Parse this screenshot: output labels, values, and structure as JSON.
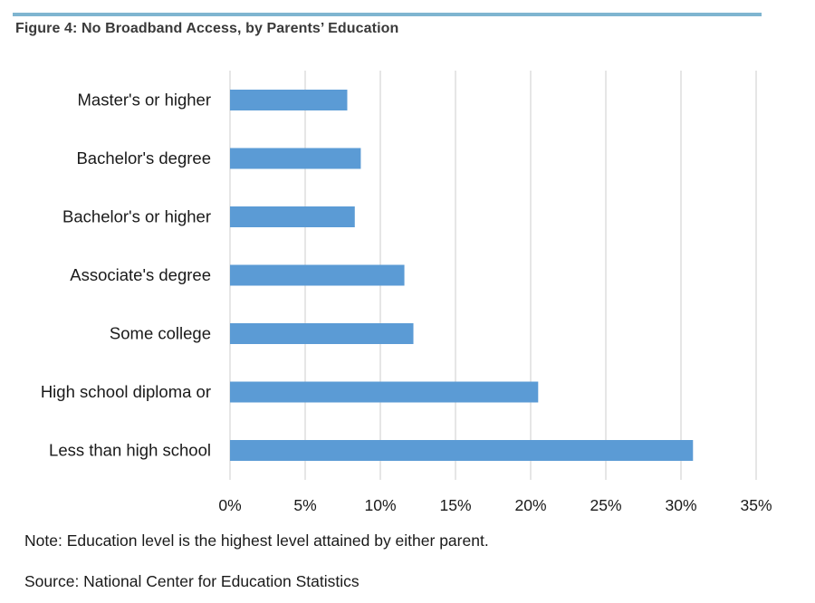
{
  "figure": {
    "title": "Figure 4: No Broadband Access, by Parents’ Education",
    "note": "Note: Education level is the highest level attained by either parent.",
    "source": "Source: National Center for Education Statistics"
  },
  "colors": {
    "bar": "#5b9bd5",
    "gridline": "#d9d9d9",
    "rule": "#7fb5d0"
  },
  "chart_data": {
    "type": "bar",
    "orientation": "horizontal",
    "categories": [
      "Master's or higher",
      "Bachelor's degree",
      "Bachelor's or higher",
      "Associate's degree",
      "Some college",
      "High school diploma or",
      "Less than high school"
    ],
    "values": [
      7.8,
      8.7,
      8.3,
      11.6,
      12.2,
      20.5,
      30.8
    ],
    "xlim": [
      0,
      35
    ],
    "xticks": [
      0,
      5,
      10,
      15,
      20,
      25,
      30,
      35
    ],
    "xtick_labels": [
      "0%",
      "5%",
      "10%",
      "15%",
      "20%",
      "25%",
      "30%",
      "35%"
    ],
    "unit": "%",
    "grid": "vertical",
    "legend": "none"
  }
}
